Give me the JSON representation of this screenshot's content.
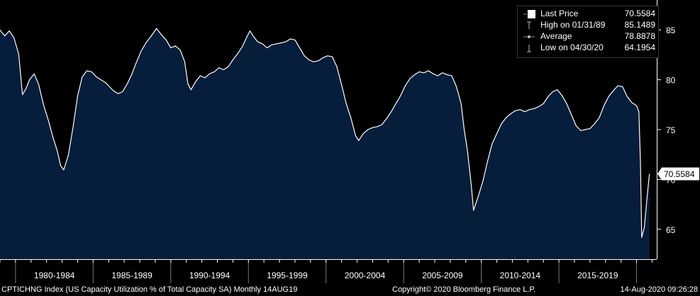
{
  "chart_data": {
    "type": "area",
    "title": "",
    "xlabel": "",
    "ylabel": "",
    "ylim": [
      62,
      88
    ],
    "yticks": [
      65,
      70,
      75,
      80,
      85
    ],
    "grid": false,
    "x_period_labels": [
      "1980-1984",
      "1985-1989",
      "1990-1994",
      "1995-1999",
      "2000-2004",
      "2005-2009",
      "2010-2014",
      "2015-2019"
    ],
    "x_start_year": 1979.0,
    "x_end_year": 2021.3,
    "series": [
      {
        "name": "Last Price",
        "color": "#ffffff",
        "fill": "#061d3b",
        "points": [
          [
            1979.0,
            85.0
          ],
          [
            1979.3,
            84.4
          ],
          [
            1979.6,
            84.9
          ],
          [
            1979.9,
            84.2
          ],
          [
            1980.2,
            82.6
          ],
          [
            1980.45,
            78.5
          ],
          [
            1980.7,
            79.2
          ],
          [
            1980.9,
            80.0
          ],
          [
            1981.2,
            80.6
          ],
          [
            1981.5,
            79.5
          ],
          [
            1981.8,
            77.5
          ],
          [
            1982.1,
            76.0
          ],
          [
            1982.4,
            74.3
          ],
          [
            1982.7,
            72.8
          ],
          [
            1982.9,
            71.4
          ],
          [
            1983.1,
            70.95
          ],
          [
            1983.4,
            72.4
          ],
          [
            1983.7,
            75.2
          ],
          [
            1984.0,
            78.4
          ],
          [
            1984.3,
            80.3
          ],
          [
            1984.6,
            80.9
          ],
          [
            1984.9,
            80.8
          ],
          [
            1985.2,
            80.3
          ],
          [
            1985.5,
            80.0
          ],
          [
            1985.8,
            79.7
          ],
          [
            1986.0,
            79.4
          ],
          [
            1986.3,
            78.9
          ],
          [
            1986.6,
            78.6
          ],
          [
            1986.9,
            78.8
          ],
          [
            1987.2,
            79.6
          ],
          [
            1987.5,
            80.6
          ],
          [
            1987.8,
            81.8
          ],
          [
            1988.1,
            82.9
          ],
          [
            1988.4,
            83.7
          ],
          [
            1988.7,
            84.3
          ],
          [
            1989.08,
            85.1489
          ],
          [
            1989.4,
            84.5
          ],
          [
            1989.7,
            84.0
          ],
          [
            1990.0,
            83.2
          ],
          [
            1990.3,
            83.4
          ],
          [
            1990.6,
            83.0
          ],
          [
            1990.9,
            81.8
          ],
          [
            1991.1,
            79.6
          ],
          [
            1991.3,
            79.0
          ],
          [
            1991.6,
            79.8
          ],
          [
            1991.9,
            80.4
          ],
          [
            1992.2,
            80.2
          ],
          [
            1992.5,
            80.6
          ],
          [
            1992.8,
            80.8
          ],
          [
            1993.1,
            81.2
          ],
          [
            1993.4,
            81.0
          ],
          [
            1993.7,
            81.3
          ],
          [
            1994.0,
            82.0
          ],
          [
            1994.3,
            82.6
          ],
          [
            1994.6,
            83.3
          ],
          [
            1994.9,
            84.3
          ],
          [
            1995.1,
            84.9
          ],
          [
            1995.35,
            84.3
          ],
          [
            1995.6,
            83.8
          ],
          [
            1995.9,
            83.6
          ],
          [
            1996.2,
            83.2
          ],
          [
            1996.5,
            83.5
          ],
          [
            1996.8,
            83.6
          ],
          [
            1997.1,
            83.7
          ],
          [
            1997.4,
            83.8
          ],
          [
            1997.7,
            84.1
          ],
          [
            1998.0,
            84.0
          ],
          [
            1998.3,
            83.2
          ],
          [
            1998.6,
            82.4
          ],
          [
            1998.9,
            82.0
          ],
          [
            1999.2,
            81.8
          ],
          [
            1999.5,
            81.9
          ],
          [
            1999.8,
            82.2
          ],
          [
            2000.1,
            82.4
          ],
          [
            2000.4,
            82.3
          ],
          [
            2000.7,
            81.3
          ],
          [
            2001.0,
            79.5
          ],
          [
            2001.3,
            77.6
          ],
          [
            2001.6,
            76.2
          ],
          [
            2001.9,
            74.4
          ],
          [
            2002.1,
            73.9
          ],
          [
            2002.4,
            74.6
          ],
          [
            2002.7,
            75.0
          ],
          [
            2003.0,
            75.2
          ],
          [
            2003.3,
            75.3
          ],
          [
            2003.6,
            75.5
          ],
          [
            2003.9,
            76.1
          ],
          [
            2004.2,
            76.8
          ],
          [
            2004.5,
            77.6
          ],
          [
            2004.8,
            78.4
          ],
          [
            2005.1,
            79.4
          ],
          [
            2005.4,
            80.1
          ],
          [
            2005.7,
            80.5
          ],
          [
            2006.0,
            80.8
          ],
          [
            2006.3,
            80.7
          ],
          [
            2006.6,
            80.9
          ],
          [
            2006.9,
            80.6
          ],
          [
            2007.2,
            80.4
          ],
          [
            2007.5,
            80.7
          ],
          [
            2007.8,
            80.5
          ],
          [
            2008.1,
            80.4
          ],
          [
            2008.4,
            79.3
          ],
          [
            2008.7,
            77.6
          ],
          [
            2008.9,
            75.0
          ],
          [
            2009.1,
            73.0
          ],
          [
            2009.35,
            69.5
          ],
          [
            2009.5,
            66.9
          ],
          [
            2009.8,
            68.3
          ],
          [
            2010.1,
            69.8
          ],
          [
            2010.4,
            71.8
          ],
          [
            2010.7,
            73.6
          ],
          [
            2011.0,
            74.6
          ],
          [
            2011.3,
            75.6
          ],
          [
            2011.6,
            76.2
          ],
          [
            2011.9,
            76.6
          ],
          [
            2012.2,
            76.9
          ],
          [
            2012.5,
            77.0
          ],
          [
            2012.8,
            76.8
          ],
          [
            2013.1,
            77.0
          ],
          [
            2013.4,
            77.1
          ],
          [
            2013.7,
            77.3
          ],
          [
            2014.0,
            77.6
          ],
          [
            2014.3,
            78.3
          ],
          [
            2014.6,
            78.8
          ],
          [
            2014.9,
            79.0
          ],
          [
            2015.2,
            78.4
          ],
          [
            2015.5,
            77.6
          ],
          [
            2015.8,
            76.5
          ],
          [
            2016.1,
            75.4
          ],
          [
            2016.4,
            74.9
          ],
          [
            2016.7,
            75.0
          ],
          [
            2017.0,
            75.1
          ],
          [
            2017.3,
            75.6
          ],
          [
            2017.6,
            76.2
          ],
          [
            2017.9,
            77.4
          ],
          [
            2018.2,
            78.3
          ],
          [
            2018.5,
            78.9
          ],
          [
            2018.8,
            79.4
          ],
          [
            2019.1,
            79.3
          ],
          [
            2019.4,
            78.3
          ],
          [
            2019.7,
            77.7
          ],
          [
            2020.0,
            77.4
          ],
          [
            2020.15,
            76.8
          ],
          [
            2020.25,
            71.8
          ],
          [
            2020.33,
            64.1954
          ],
          [
            2020.5,
            65.2
          ],
          [
            2020.7,
            68.6
          ],
          [
            2020.83,
            70.5584
          ]
        ]
      }
    ],
    "last_price_label": "70.5584"
  },
  "legend": {
    "items": [
      {
        "label": "Last Price",
        "value": "70.5584"
      },
      {
        "label": "High on 01/31/89",
        "value": "85.1489"
      },
      {
        "label": "Average",
        "value": "78.8878"
      },
      {
        "label": "Low on 04/30/20",
        "value": "64.1954"
      }
    ]
  },
  "footer": {
    "left": "CPTICHNG Index (US Capacity Utilization % of Total Capacity SA)  Monthly 14AUG19",
    "center": "Copyright© 2020 Bloomberg Finance L.P.",
    "right": "14-Aug-2020 09:26:28"
  }
}
